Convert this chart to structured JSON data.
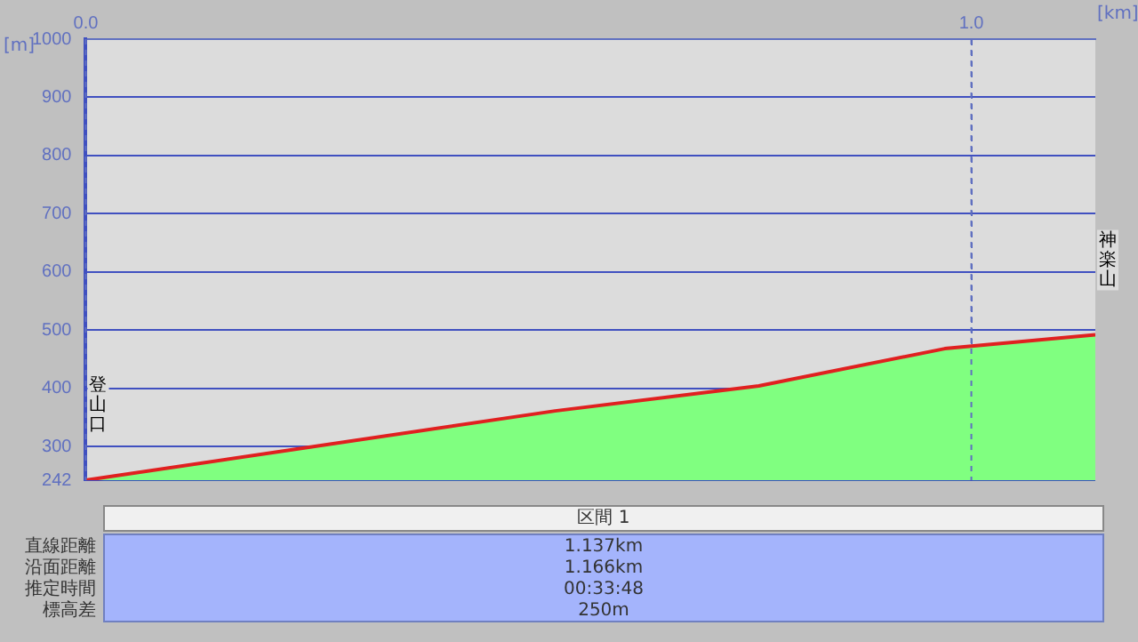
{
  "chart_data": {
    "type": "area",
    "xlabel": "[km]",
    "ylabel": "[m]",
    "x": [
      0,
      0.53,
      0.76,
      0.97,
      1.14
    ],
    "series": [
      {
        "color": "#80ff80",
        "values": [
          242,
          361,
          404,
          468,
          492
        ]
      }
    ],
    "xlim": [
      0,
      1.14
    ],
    "xticks": [
      {
        "value": 0,
        "label": "0.0"
      },
      {
        "value": 1,
        "label": "1.0"
      }
    ],
    "ylim": [
      242,
      1000
    ],
    "yticks": [
      242,
      300,
      400,
      500,
      600,
      700,
      800,
      900,
      1000
    ],
    "grid": true,
    "legend": false,
    "marker": "none",
    "line_style": "solid",
    "annotations": [
      {
        "text": "登山口",
        "x": 0,
        "y": 242
      },
      {
        "text": "神楽山",
        "x": 1.14,
        "y": 492
      },
      "区間 1",
      "直線距離",
      "1.137km",
      "沿面距離",
      "1.166km",
      "推定時間",
      "00:33:48",
      "標高差",
      "250m"
    ]
  }
}
